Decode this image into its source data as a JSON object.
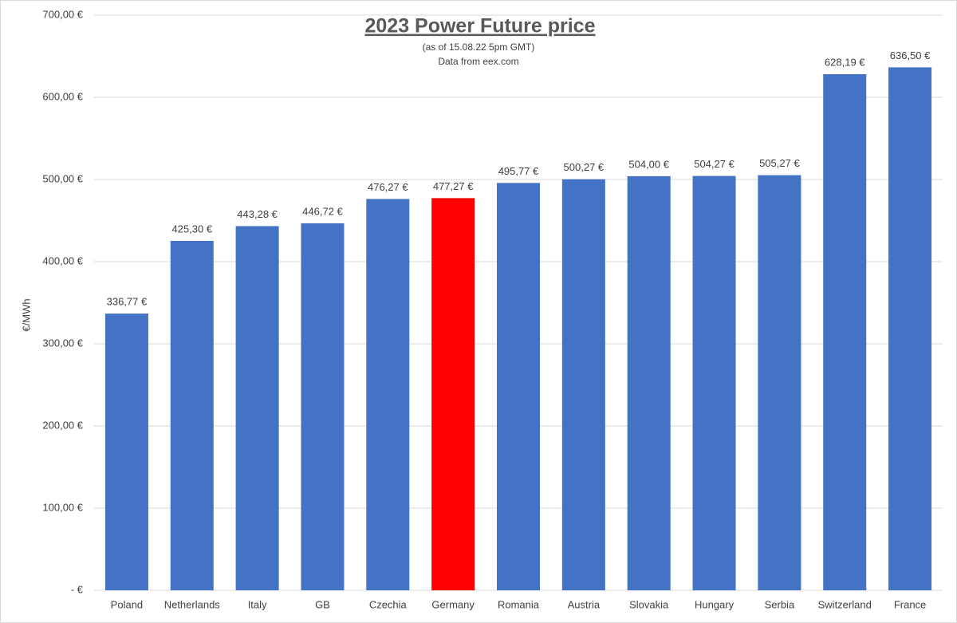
{
  "chart_data": {
    "type": "bar",
    "title": "2023 Power Future price",
    "subtitle": [
      "(as of 15.08.22 5pm GMT)",
      "Data from eex.com"
    ],
    "y_label": "€/MWh",
    "categories": [
      "Poland",
      "Netherlands",
      "Italy",
      "GB",
      "Czechia",
      "Germany",
      "Romania",
      "Austria",
      "Slovakia",
      "Hungary",
      "Serbia",
      "Switzerland",
      "France"
    ],
    "values": [
      336.77,
      425.3,
      443.28,
      446.72,
      476.27,
      477.27,
      495.77,
      500.27,
      504.0,
      504.27,
      505.27,
      628.19,
      636.5
    ],
    "value_labels": [
      "336,77 €",
      "425,30 €",
      "443,28 €",
      "446,72 €",
      "476,27 €",
      "477,27 €",
      "495,77 €",
      "500,27 €",
      "504,00 €",
      "504,27 €",
      "505,27 €",
      "628,19 €",
      "636,50 €"
    ],
    "colors": [
      "#4472c4",
      "#4472c4",
      "#4472c4",
      "#4472c4",
      "#4472c4",
      "#ff0000",
      "#4472c4",
      "#4472c4",
      "#4472c4",
      "#4472c4",
      "#4472c4",
      "#4472c4",
      "#4472c4"
    ],
    "ylim": [
      0,
      700
    ],
    "yticks": [
      {
        "value": 0,
        "label": "-  €"
      },
      {
        "value": 100,
        "label": "100,00 €"
      },
      {
        "value": 200,
        "label": "200,00 €"
      },
      {
        "value": 300,
        "label": "300,00 €"
      },
      {
        "value": 400,
        "label": "400,00 €"
      },
      {
        "value": 500,
        "label": "500,00 €"
      },
      {
        "value": 600,
        "label": "600,00 €"
      },
      {
        "value": 700,
        "label": "700,00 €"
      }
    ],
    "grid": true
  }
}
